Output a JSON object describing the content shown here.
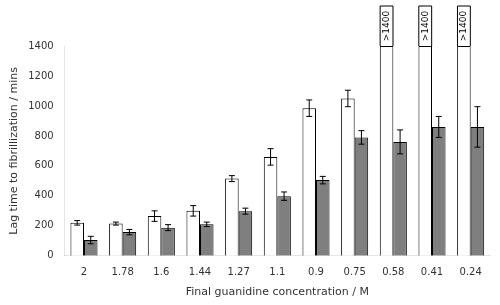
{
  "chart_data": {
    "type": "bar",
    "categories": [
      "2",
      "1.78",
      "1.6",
      "1.44",
      "1.27",
      "1.1",
      "0.9",
      "0.75",
      "0.58",
      "0.41",
      "0.24"
    ],
    "series": [
      {
        "color": "#ffffff",
        "values": [
          220,
          215,
          265,
          300,
          515,
          660,
          985,
          1050,
          1400,
          1400,
          1400
        ],
        "errors": [
          15,
          10,
          35,
          35,
          20,
          55,
          55,
          55,
          0,
          0,
          0
        ],
        "annotations": [
          {
            "x": "0.58",
            "text": ">1400"
          },
          {
            "x": "0.41",
            "text": ">1400"
          },
          {
            "x": "0.24",
            "text": ">1400"
          }
        ]
      },
      {
        "color": "#7f7f7f",
        "values": [
          105,
          158,
          188,
          210,
          298,
          398,
          505,
          790,
          760,
          860,
          860
        ],
        "errors": [
          25,
          18,
          20,
          15,
          20,
          28,
          25,
          45,
          80,
          70,
          135
        ]
      }
    ],
    "xlabel": "Final guanidine concentration / M",
    "ylabel": "Lag time to fibrillization / mins",
    "ylim": [
      0,
      1400
    ],
    "yticks": [
      0,
      200,
      400,
      600,
      800,
      1000,
      1200,
      1400
    ],
    "grid": false
  }
}
